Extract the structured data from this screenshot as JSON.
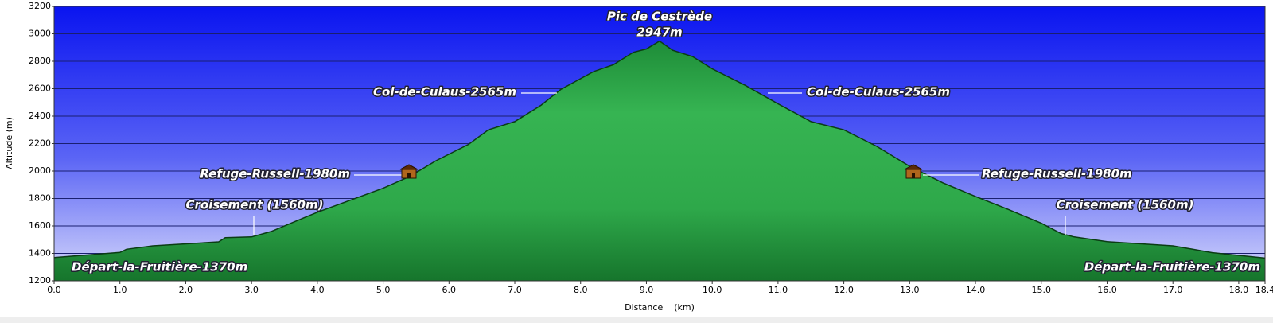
{
  "chart_data": {
    "type": "area",
    "x_label": "Distance    (km)",
    "y_label": "Altitude (m)",
    "x": [
      0,
      1.0,
      1.1,
      1.5,
      2.5,
      2.6,
      3.0,
      3.3,
      3.7,
      4.0,
      5.0,
      5.4,
      5.8,
      6.3,
      6.6,
      7.0,
      7.4,
      7.7,
      8.2,
      8.5,
      8.8,
      9.0,
      9.2,
      9.4,
      9.7,
      10.0,
      10.5,
      11.0,
      11.5,
      12.0,
      12.5,
      13.0,
      13.5,
      14.0,
      14.5,
      15.0,
      15.3,
      15.5,
      16.0,
      17.0,
      17.3,
      17.6,
      18.4
    ],
    "values": [
      1370,
      1407,
      1430,
      1455,
      1484,
      1514,
      1520,
      1560,
      1640,
      1700,
      1875,
      1960,
      2075,
      2195,
      2300,
      2360,
      2480,
      2595,
      2725,
      2775,
      2865,
      2890,
      2947,
      2880,
      2835,
      2745,
      2625,
      2490,
      2360,
      2300,
      2180,
      2035,
      1915,
      1815,
      1720,
      1620,
      1545,
      1520,
      1485,
      1455,
      1430,
      1405,
      1366
    ],
    "color": "#2faa4a",
    "xlim": [
      0,
      18.4
    ],
    "xticks": [
      {
        "value": 0,
        "label": "0.0"
      },
      {
        "value": 1,
        "label": "1.0"
      },
      {
        "value": 2,
        "label": "2.0"
      },
      {
        "value": 3,
        "label": "3.0"
      },
      {
        "value": 4,
        "label": "4.0"
      },
      {
        "value": 5,
        "label": "5.0"
      },
      {
        "value": 6,
        "label": "6.0"
      },
      {
        "value": 7,
        "label": "7.0"
      },
      {
        "value": 8,
        "label": "8.0"
      },
      {
        "value": 9,
        "label": "9.0"
      },
      {
        "value": 10,
        "label": "10.0"
      },
      {
        "value": 11,
        "label": "11.0"
      },
      {
        "value": 12,
        "label": "12.0"
      },
      {
        "value": 13,
        "label": "13.0"
      },
      {
        "value": 14,
        "label": "14.0"
      },
      {
        "value": 15,
        "label": "15.0"
      },
      {
        "value": 16,
        "label": "16.0"
      },
      {
        "value": 17,
        "label": "17.0"
      },
      {
        "value": 18,
        "label": "18.0"
      },
      18.4
    ],
    "ylim": [
      1200,
      3200
    ],
    "yticks": [
      1200,
      1400,
      1600,
      1800,
      2000,
      2200,
      2400,
      2600,
      2800,
      3000,
      3200
    ],
    "grid": true,
    "annotations": [
      "Pic de Cestrède",
      "2947m",
      "Col-de-Culaus-2565m",
      "Col-de-Culaus-2565m",
      "Refuge-Russell-1980m",
      "Refuge-Russell-1980m",
      "Croisement (1560m)",
      "Croisement (1560m)",
      "Départ-la-Fruitière-1370m",
      "Départ-la-Fruitière-1370m"
    ]
  }
}
